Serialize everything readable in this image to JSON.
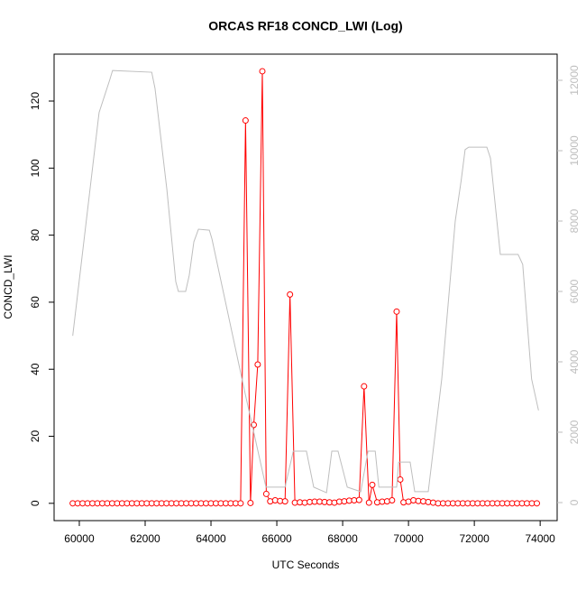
{
  "chart_data": {
    "type": "line",
    "title": "ORCAS RF18 CONCD_LWI (Log)",
    "x_label": "UTC Seconds",
    "y_label": "CONCD_LWI",
    "xlim": [
      59234,
      74516
    ],
    "ylim": [
      -5.16,
      134.0
    ],
    "y2lim": [
      -513,
      12744
    ],
    "xticks": [
      60000,
      62000,
      64000,
      66000,
      68000,
      70000,
      72000,
      74000
    ],
    "yticks": [
      0,
      20,
      40,
      60,
      80,
      100,
      120
    ],
    "y2ticks": [
      0,
      2000,
      4000,
      6000,
      8000,
      10000,
      12000
    ],
    "series": [
      {
        "color": "#ff0000",
        "markers": true,
        "x": [
          59800,
          59950,
          60100,
          60250,
          60400,
          60550,
          60700,
          60850,
          61000,
          61150,
          61300,
          61450,
          61600,
          61750,
          61900,
          62050,
          62200,
          62350,
          62500,
          62650,
          62800,
          62950,
          63100,
          63250,
          63400,
          63550,
          63700,
          63850,
          64000,
          64150,
          64300,
          64450,
          64600,
          64750,
          64900,
          65050,
          65200,
          65300,
          65420,
          65560,
          65680,
          65800,
          65950,
          66100,
          66250,
          66400,
          66550,
          66700,
          66850,
          67000,
          67150,
          67300,
          67450,
          67600,
          67750,
          67900,
          68050,
          68200,
          68350,
          68500,
          68650,
          68800,
          68900,
          69050,
          69200,
          69350,
          69500,
          69640,
          69750,
          69850,
          70000,
          70150,
          70300,
          70450,
          70600,
          70750,
          70900,
          71050,
          71200,
          71350,
          71500,
          71650,
          71800,
          71950,
          72100,
          72250,
          72400,
          72550,
          72700,
          72850,
          73000,
          73150,
          73300,
          73450,
          73600,
          73750,
          73900
        ],
        "values": [
          0,
          0,
          0,
          0,
          0,
          0,
          0,
          0,
          0,
          0,
          0,
          0,
          0,
          0,
          0,
          0,
          0,
          0,
          0,
          0,
          0,
          0,
          0,
          0,
          0,
          0,
          0,
          0,
          0,
          0,
          0,
          0,
          0,
          0,
          0,
          114.2,
          0.1,
          23.4,
          41.4,
          128.9,
          2.8,
          0.6,
          0.9,
          0.7,
          0.6,
          62.3,
          0.2,
          0.3,
          0.2,
          0.4,
          0.5,
          0.5,
          0.4,
          0.3,
          0.2,
          0.5,
          0.6,
          0.8,
          0.9,
          1.0,
          34.9,
          0.2,
          5.5,
          0.3,
          0.5,
          0.6,
          0.9,
          57.2,
          7.1,
          0.3,
          0.5,
          0.9,
          0.7,
          0.6,
          0.4,
          0.2,
          0,
          0,
          0,
          0,
          0,
          0,
          0,
          0,
          0,
          0,
          0,
          0,
          0,
          0,
          0,
          0,
          0,
          0,
          0,
          0,
          0
        ]
      },
      {
        "color": "#bebebe",
        "axis": "y2",
        "markers": false,
        "x": [
          59800,
          60600,
          60930,
          61010,
          62200,
          62300,
          62660,
          62930,
          63010,
          63230,
          63340,
          63480,
          63620,
          63950,
          64030,
          65000,
          65670,
          66250,
          66500,
          66900,
          67120,
          67510,
          67670,
          67860,
          68140,
          68550,
          68770,
          68990,
          69100,
          69640,
          69700,
          70050,
          70190,
          70600,
          71010,
          71420,
          71600,
          71720,
          71830,
          72380,
          72490,
          72790,
          73330,
          73470,
          73740,
          73950
        ],
        "values": [
          4740,
          11080,
          12030,
          12280,
          12230,
          11770,
          8900,
          6280,
          6000,
          6000,
          6460,
          7410,
          7770,
          7740,
          7490,
          3260,
          440,
          440,
          1460,
          1460,
          440,
          280,
          1460,
          1460,
          440,
          310,
          1460,
          1460,
          440,
          440,
          1150,
          1150,
          310,
          310,
          3510,
          8000,
          9150,
          10030,
          10100,
          10100,
          9790,
          7050,
          7050,
          6770,
          3510,
          2620
        ]
      }
    ]
  }
}
